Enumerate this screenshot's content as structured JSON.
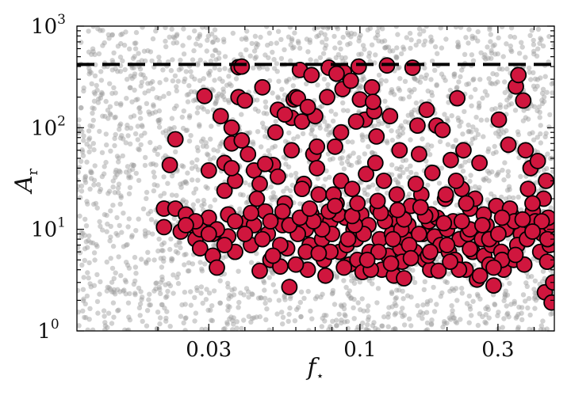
{
  "chart_data": {
    "type": "scatter",
    "title": "",
    "xlabel": "f",
    "xlabel_sub": "⋆",
    "ylabel": "A",
    "ylabel_sub": "r",
    "x_scale": "log",
    "y_scale": "log",
    "xlim": [
      0.0105,
      0.47
    ],
    "ylim": [
      1,
      1000
    ],
    "x_ticks": [
      {
        "value": 0.03,
        "label": "0.03"
      },
      {
        "value": 0.1,
        "label": "0.1"
      },
      {
        "value": 0.3,
        "label": "0.3"
      }
    ],
    "y_ticks": [
      {
        "value": 1,
        "label": "1",
        "exp": "0"
      },
      {
        "value": 10,
        "label": "10",
        "exp": "1"
      },
      {
        "value": 100,
        "label": "10",
        "exp": "2"
      },
      {
        "value": 1000,
        "label": "10",
        "exp": "3"
      }
    ],
    "reference_line": {
      "y": 420,
      "style": "dashed",
      "color": "#000000"
    },
    "grid": false,
    "legend": "none",
    "colors": {
      "background_points": "#9a9a9a",
      "highlight_fill": "#d0163e",
      "highlight_edge": "#000000"
    },
    "series": [
      {
        "role": "background",
        "description_visible": false,
        "n_points": 2600,
        "distribution": "uniform in log(x) over xlim and log(y) over ylim"
      },
      {
        "role": "highlight",
        "points": [
          [
            0.021,
            16
          ],
          [
            0.021,
            10.5
          ],
          [
            0.022,
            43
          ],
          [
            0.023,
            77
          ],
          [
            0.024,
            9.5
          ],
          [
            0.023,
            16
          ],
          [
            0.025,
            14
          ],
          [
            0.026,
            11
          ],
          [
            0.027,
            8
          ],
          [
            0.028,
            6.5
          ],
          [
            0.028,
            10
          ],
          [
            0.029,
            205
          ],
          [
            0.03,
            38
          ],
          [
            0.03,
            13
          ],
          [
            0.031,
            5.5
          ],
          [
            0.031,
            9
          ],
          [
            0.032,
            4.2
          ],
          [
            0.033,
            130
          ],
          [
            0.034,
            45
          ],
          [
            0.034,
            24
          ],
          [
            0.035,
            14
          ],
          [
            0.035,
            8.5
          ],
          [
            0.036,
            100
          ],
          [
            0.036,
            70
          ],
          [
            0.037,
            30
          ],
          [
            0.037,
            6
          ],
          [
            0.038,
            395
          ],
          [
            0.039,
            400
          ],
          [
            0.038,
            200
          ],
          [
            0.04,
            185
          ],
          [
            0.041,
            55
          ],
          [
            0.041,
            12
          ],
          [
            0.042,
            7
          ],
          [
            0.043,
            38
          ],
          [
            0.044,
            20
          ],
          [
            0.045,
            3.9
          ],
          [
            0.046,
            250
          ],
          [
            0.047,
            15
          ],
          [
            0.048,
            9
          ],
          [
            0.049,
            5
          ],
          [
            0.05,
            43
          ],
          [
            0.051,
            90
          ],
          [
            0.052,
            33
          ],
          [
            0.053,
            4.3
          ],
          [
            0.054,
            11
          ],
          [
            0.055,
            18
          ],
          [
            0.056,
            6.5
          ],
          [
            0.057,
            2.7
          ],
          [
            0.058,
            125
          ],
          [
            0.059,
            190
          ],
          [
            0.06,
            200
          ],
          [
            0.061,
            195
          ],
          [
            0.062,
            370
          ],
          [
            0.063,
            115
          ],
          [
            0.064,
            28
          ],
          [
            0.065,
            10
          ],
          [
            0.066,
            4
          ],
          [
            0.067,
            7
          ],
          [
            0.068,
            14
          ],
          [
            0.069,
            55
          ],
          [
            0.07,
            130
          ],
          [
            0.071,
            40
          ],
          [
            0.072,
            22
          ],
          [
            0.073,
            12
          ],
          [
            0.074,
            8
          ],
          [
            0.075,
            5
          ],
          [
            0.076,
            3.5
          ],
          [
            0.077,
            200
          ],
          [
            0.078,
            390
          ],
          [
            0.079,
            12
          ],
          [
            0.08,
            9
          ],
          [
            0.082,
            65
          ],
          [
            0.083,
            18
          ],
          [
            0.085,
            6
          ],
          [
            0.086,
            30
          ],
          [
            0.087,
            240
          ],
          [
            0.088,
            350
          ],
          [
            0.089,
            13
          ],
          [
            0.09,
            7
          ],
          [
            0.092,
            4.5
          ],
          [
            0.093,
            290
          ],
          [
            0.094,
            25
          ],
          [
            0.095,
            10
          ],
          [
            0.097,
            8
          ],
          [
            0.098,
            5
          ],
          [
            0.099,
            400
          ],
          [
            0.1,
            190
          ],
          [
            0.101,
            14
          ],
          [
            0.102,
            3.8
          ],
          [
            0.104,
            120
          ],
          [
            0.105,
            35
          ],
          [
            0.107,
            11
          ],
          [
            0.108,
            6
          ],
          [
            0.11,
            250
          ],
          [
            0.112,
            145
          ],
          [
            0.114,
            82
          ],
          [
            0.115,
            16
          ],
          [
            0.117,
            8
          ],
          [
            0.119,
            4
          ],
          [
            0.121,
            30
          ],
          [
            0.123,
            13
          ],
          [
            0.125,
            5.5
          ],
          [
            0.127,
            130
          ],
          [
            0.129,
            9
          ],
          [
            0.131,
            3.5
          ],
          [
            0.134,
            22
          ],
          [
            0.136,
            12
          ],
          [
            0.138,
            6.5
          ],
          [
            0.14,
            4.8
          ],
          [
            0.142,
            3.3
          ],
          [
            0.144,
            8
          ],
          [
            0.147,
            11
          ],
          [
            0.15,
            17
          ],
          [
            0.152,
            390
          ],
          [
            0.155,
            6
          ],
          [
            0.158,
            105
          ],
          [
            0.16,
            55
          ],
          [
            0.163,
            22
          ],
          [
            0.165,
            9
          ],
          [
            0.168,
            5
          ],
          [
            0.17,
            150
          ],
          [
            0.173,
            12
          ],
          [
            0.175,
            4
          ],
          [
            0.178,
            36
          ],
          [
            0.181,
            8.5
          ],
          [
            0.184,
            105
          ],
          [
            0.187,
            3.9
          ],
          [
            0.19,
            7
          ],
          [
            0.193,
            95
          ],
          [
            0.197,
            20
          ],
          [
            0.2,
            10
          ],
          [
            0.203,
            6
          ],
          [
            0.206,
            48
          ],
          [
            0.21,
            12
          ],
          [
            0.213,
            5
          ],
          [
            0.217,
            195
          ],
          [
            0.221,
            8
          ],
          [
            0.225,
            25
          ],
          [
            0.228,
            60
          ],
          [
            0.232,
            4
          ],
          [
            0.236,
            9
          ],
          [
            0.24,
            16
          ],
          [
            0.245,
            6
          ],
          [
            0.25,
            20
          ],
          [
            0.254,
            3.2
          ],
          [
            0.259,
            45
          ],
          [
            0.264,
            8
          ],
          [
            0.269,
            5.5
          ],
          [
            0.274,
            11
          ],
          [
            0.28,
            4.5
          ],
          [
            0.285,
            7
          ],
          [
            0.29,
            2.8
          ],
          [
            0.296,
            17
          ],
          [
            0.302,
            120
          ],
          [
            0.308,
            6
          ],
          [
            0.314,
            4
          ],
          [
            0.32,
            10
          ],
          [
            0.326,
            68
          ],
          [
            0.333,
            14
          ],
          [
            0.34,
            5
          ],
          [
            0.346,
            255
          ],
          [
            0.353,
            330
          ],
          [
            0.36,
            9
          ],
          [
            0.367,
            185
          ],
          [
            0.374,
            60
          ],
          [
            0.381,
            25
          ],
          [
            0.389,
            40
          ],
          [
            0.396,
            15
          ],
          [
            0.404,
            12
          ],
          [
            0.412,
            47
          ],
          [
            0.42,
            6
          ],
          [
            0.428,
            9
          ],
          [
            0.436,
            2.4
          ],
          [
            0.444,
            4.8
          ],
          [
            0.453,
            7
          ],
          [
            0.46,
            1.9
          ],
          [
            0.455,
            11
          ],
          [
            0.448,
            13
          ],
          [
            0.44,
            30
          ],
          [
            0.432,
            20
          ],
          [
            0.395,
            18
          ],
          [
            0.37,
            4.5
          ],
          [
            0.35,
            7
          ],
          [
            0.33,
            16
          ],
          [
            0.31,
            5
          ],
          [
            0.28,
            8
          ],
          [
            0.26,
            3.5
          ],
          [
            0.24,
            10
          ],
          [
            0.22,
            4
          ],
          [
            0.2,
            7
          ],
          [
            0.185,
            13
          ],
          [
            0.172,
            5.5
          ],
          [
            0.16,
            9
          ],
          [
            0.148,
            7
          ],
          [
            0.139,
            10
          ],
          [
            0.13,
            8
          ],
          [
            0.122,
            12
          ],
          [
            0.116,
            6
          ],
          [
            0.109,
            4
          ],
          [
            0.103,
            9
          ],
          [
            0.096,
            11
          ],
          [
            0.091,
            8
          ],
          [
            0.084,
            14
          ],
          [
            0.079,
            6
          ],
          [
            0.074,
            10
          ],
          [
            0.069,
            12
          ],
          [
            0.065,
            6
          ],
          [
            0.061,
            9
          ],
          [
            0.057,
            11
          ],
          [
            0.053,
            7
          ],
          [
            0.049,
            12
          ],
          [
            0.046,
            8
          ],
          [
            0.043,
            11
          ],
          [
            0.04,
            9
          ],
          [
            0.037,
            12
          ],
          [
            0.034,
            7
          ],
          [
            0.032,
            10
          ],
          [
            0.03,
            9
          ],
          [
            0.027,
            12
          ],
          [
            0.025,
            11
          ],
          [
            0.052,
            150
          ],
          [
            0.066,
            160
          ],
          [
            0.083,
            340
          ],
          [
            0.058,
            60
          ],
          [
            0.047,
            44
          ],
          [
            0.039,
            75
          ],
          [
            0.036,
            40
          ],
          [
            0.045,
            28
          ],
          [
            0.063,
            25
          ],
          [
            0.071,
            65
          ],
          [
            0.086,
            90
          ],
          [
            0.124,
            410
          ],
          [
            0.111,
            180
          ],
          [
            0.097,
            115
          ],
          [
            0.068,
            330
          ],
          [
            0.055,
            135
          ],
          [
            0.081,
            22
          ],
          [
            0.113,
            45
          ],
          [
            0.137,
            60
          ],
          [
            0.156,
            28
          ],
          [
            0.176,
            14
          ],
          [
            0.198,
            22
          ],
          [
            0.215,
            30
          ],
          [
            0.233,
            18
          ],
          [
            0.268,
            14
          ],
          [
            0.301,
            9
          ],
          [
            0.342,
            12
          ],
          [
            0.378,
            8
          ],
          [
            0.425,
            12
          ],
          [
            0.466,
            3
          ],
          [
            0.445,
            8
          ],
          [
            0.05,
            5.5
          ],
          [
            0.06,
            4.5
          ],
          [
            0.072,
            5.8
          ],
          [
            0.088,
            4.2
          ],
          [
            0.106,
            5
          ],
          [
            0.128,
            4.6
          ],
          [
            0.15,
            5.2
          ],
          [
            0.175,
            6
          ],
          [
            0.205,
            4.8
          ],
          [
            0.24,
            6.4
          ],
          [
            0.29,
            4.2
          ],
          [
            0.345,
            5.6
          ],
          [
            0.395,
            9.5
          ],
          [
            0.062,
            13
          ],
          [
            0.078,
            15
          ],
          [
            0.094,
            13.5
          ],
          [
            0.118,
            14.5
          ],
          [
            0.142,
            12.5
          ],
          [
            0.168,
            13.5
          ],
          [
            0.195,
            11.5
          ],
          [
            0.225,
            12
          ],
          [
            0.265,
            11
          ],
          [
            0.31,
            13
          ],
          [
            0.365,
            12.5
          ],
          [
            0.042,
            14.5
          ],
          [
            0.054,
            15
          ],
          [
            0.067,
            16
          ],
          [
            0.082,
            17
          ],
          [
            0.098,
            18
          ],
          [
            0.115,
            19
          ],
          [
            0.135,
            15.5
          ],
          [
            0.162,
            16.5
          ]
        ]
      }
    ]
  }
}
